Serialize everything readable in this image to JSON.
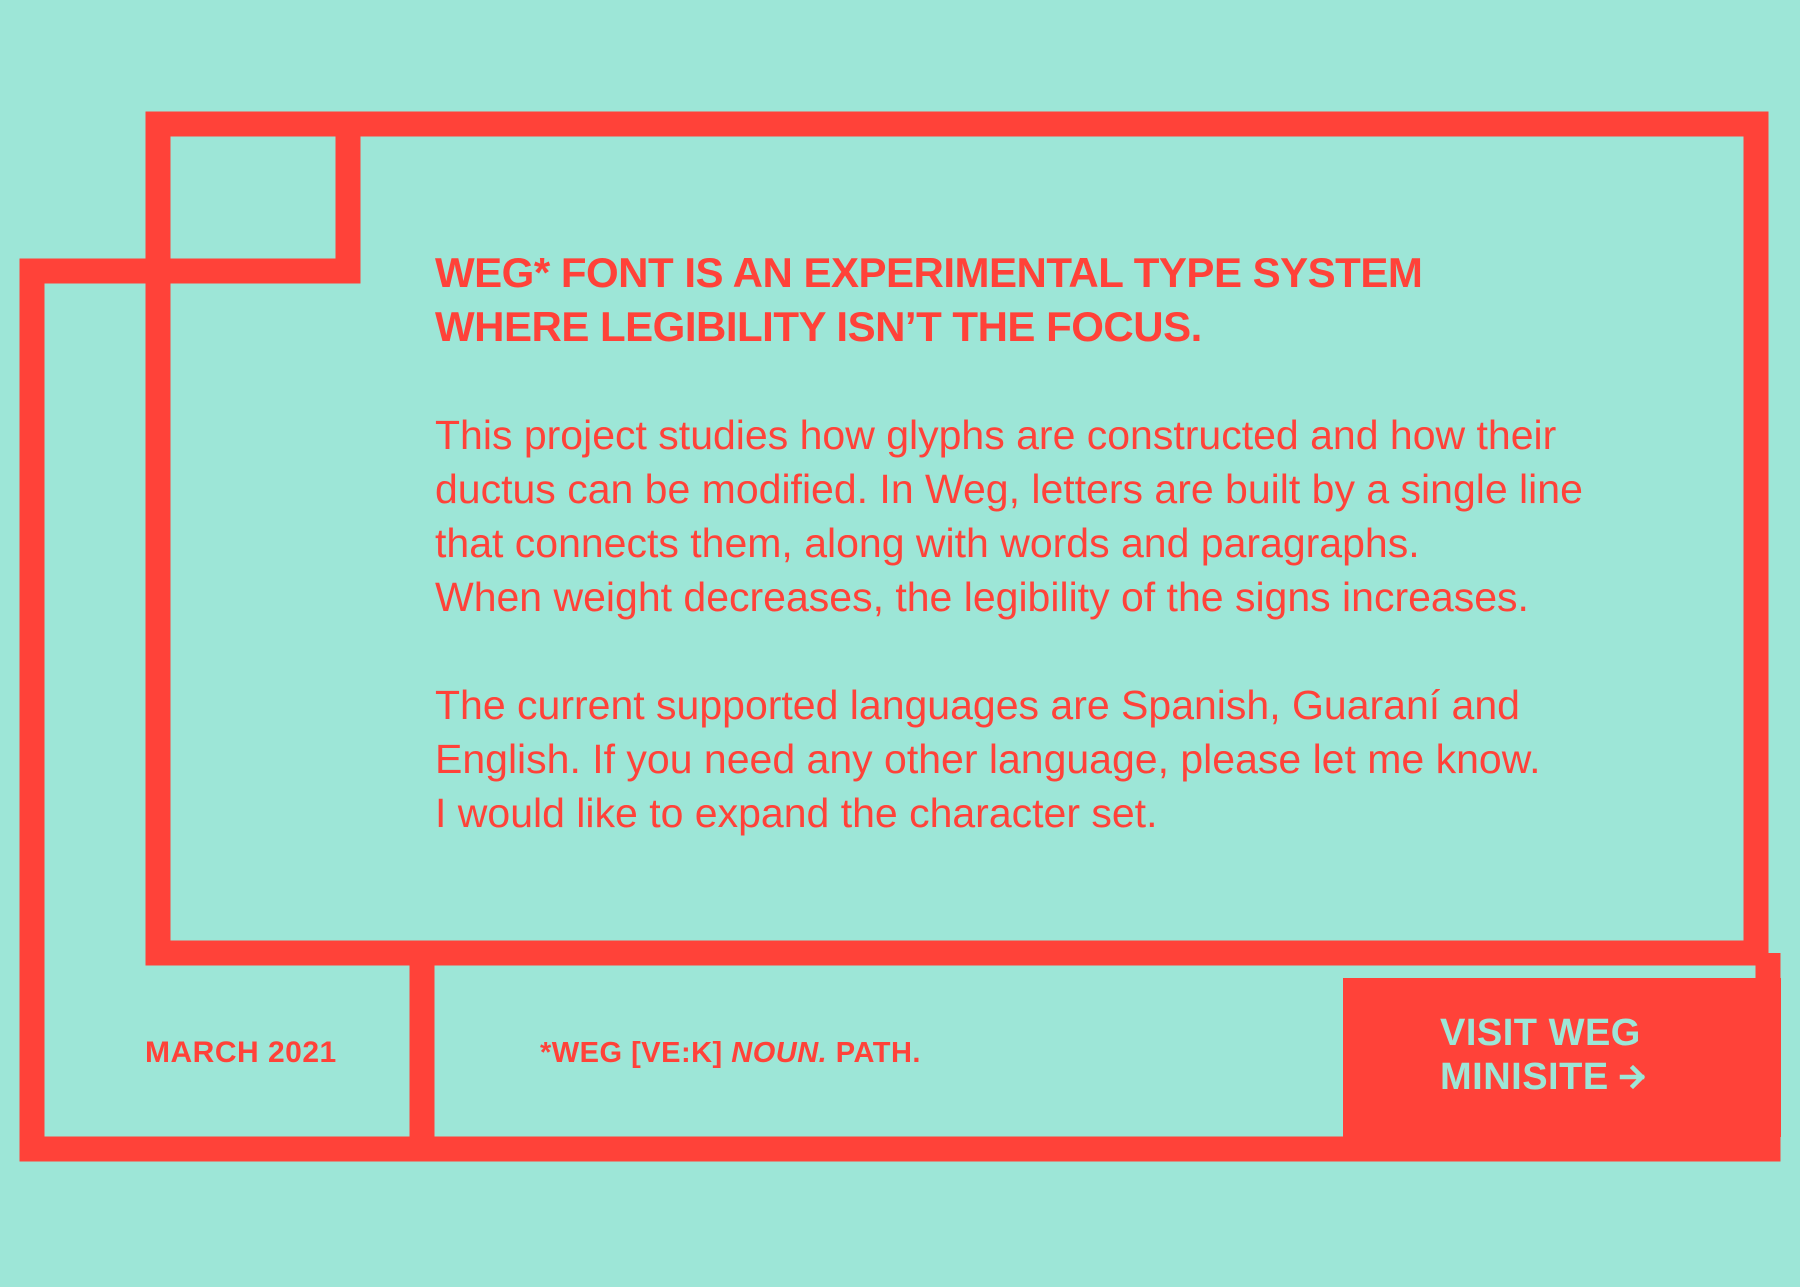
{
  "colors": {
    "background": "#9de6d7",
    "accent": "#ff4239"
  },
  "headline": {
    "line1": "WEG* FONT IS AN EXPERIMENTAL TYPE SYSTEM",
    "line2": "WHERE LEGIBILITY ISN’T THE FOCUS."
  },
  "paragraph1": {
    "line1": "This project studies how glyphs are constructed and how their",
    "line2": "ductus can be modified. In Weg, letters are built by a single line",
    "line3": "that connects them, along with words and paragraphs.",
    "line4": "When weight decreases, the legibility of the signs increases."
  },
  "paragraph2": {
    "line1": "The current supported languages are Spanish, Guaraní and",
    "line2": "English. If you need any other language, please let me know.",
    "line3": "I would like to expand the character set."
  },
  "footer": {
    "date": "MARCH 2021",
    "definition_prefix": "*WEG [VE:K] ",
    "definition_pos": "NOUN.",
    "definition_suffix": " PATH."
  },
  "cta": {
    "line1": "VISIT WEG",
    "line2": "MINISITE",
    "icon": "arrow-right-icon"
  }
}
